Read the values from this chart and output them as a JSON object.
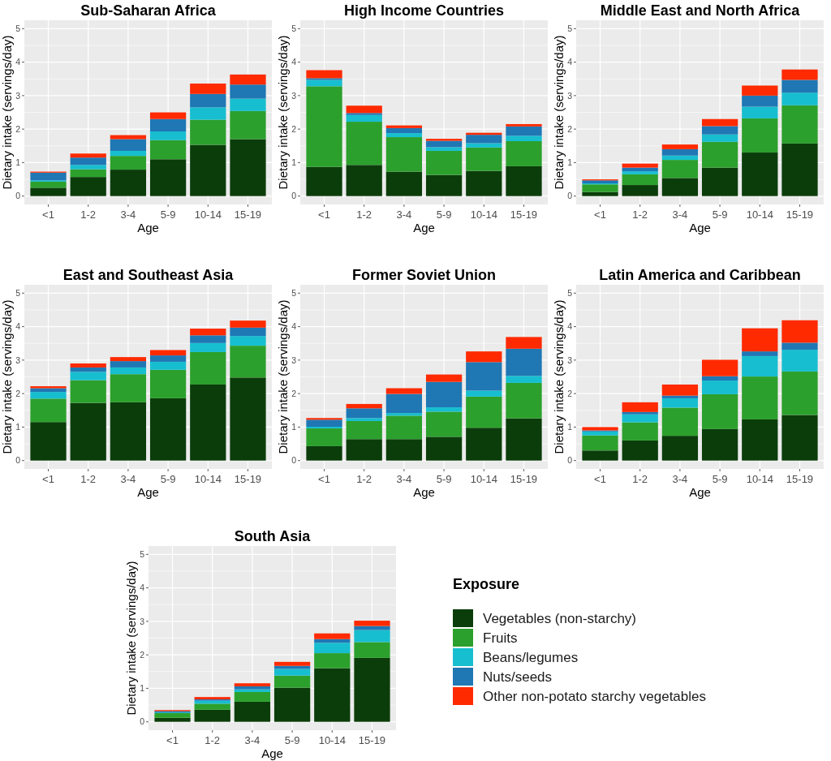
{
  "chart_data": [
    {
      "type": "bar",
      "title": "Sub-Saharan Africa",
      "xlabel": "Age",
      "ylabel": "Dietary intake (servings/day)",
      "categories": [
        "<1",
        "1-2",
        "3-4",
        "5-9",
        "10-14",
        "15-19"
      ],
      "stacked": true,
      "ylim": [
        -0.25,
        5.25
      ],
      "yticks": [
        0,
        1,
        2,
        3,
        4,
        5
      ],
      "grid": true,
      "series": [
        {
          "color": "#0b3d0b",
          "values": [
            0.25,
            0.57,
            0.79,
            1.1,
            1.53,
            1.7
          ]
        },
        {
          "color": "#2ca02c",
          "values": [
            0.18,
            0.23,
            0.41,
            0.57,
            0.75,
            0.84
          ]
        },
        {
          "color": "#17becf",
          "values": [
            0.04,
            0.13,
            0.15,
            0.26,
            0.37,
            0.37
          ]
        },
        {
          "color": "#1f77b4",
          "values": [
            0.23,
            0.22,
            0.35,
            0.37,
            0.4,
            0.42
          ]
        },
        {
          "color": "#ff2a00",
          "values": [
            0.03,
            0.12,
            0.12,
            0.2,
            0.31,
            0.3
          ]
        }
      ]
    },
    {
      "type": "bar",
      "title": "High Income Countries",
      "xlabel": "Age",
      "ylabel": "Dietary intake (servings/day)",
      "categories": [
        "<1",
        "1-2",
        "3-4",
        "5-9",
        "10-14",
        "15-19"
      ],
      "stacked": true,
      "ylim": [
        -0.25,
        5.25
      ],
      "yticks": [
        0,
        1,
        2,
        3,
        4,
        5
      ],
      "grid": true,
      "series": [
        {
          "color": "#0b3d0b",
          "values": [
            0.87,
            0.93,
            0.73,
            0.63,
            0.75,
            0.89
          ]
        },
        {
          "color": "#2ca02c",
          "values": [
            2.41,
            1.29,
            1.03,
            0.72,
            0.7,
            0.75
          ]
        },
        {
          "color": "#17becf",
          "values": [
            0.19,
            0.2,
            0.12,
            0.11,
            0.13,
            0.16
          ]
        },
        {
          "color": "#1f77b4",
          "values": [
            0.05,
            0.06,
            0.15,
            0.19,
            0.25,
            0.28
          ]
        },
        {
          "color": "#ff2a00",
          "values": [
            0.24,
            0.22,
            0.08,
            0.06,
            0.06,
            0.07
          ]
        }
      ]
    },
    {
      "type": "bar",
      "title": "Middle East and North Africa",
      "xlabel": "Age",
      "ylabel": "Dietary intake (servings/day)",
      "categories": [
        "<1",
        "1-2",
        "3-4",
        "5-9",
        "10-14",
        "15-19"
      ],
      "stacked": true,
      "ylim": [
        -0.25,
        5.25
      ],
      "yticks": [
        0,
        1,
        2,
        3,
        4,
        5
      ],
      "grid": true,
      "series": [
        {
          "color": "#0b3d0b",
          "values": [
            0.12,
            0.33,
            0.54,
            0.85,
            1.3,
            1.57
          ]
        },
        {
          "color": "#2ca02c",
          "values": [
            0.23,
            0.32,
            0.54,
            0.77,
            1.02,
            1.14
          ]
        },
        {
          "color": "#17becf",
          "values": [
            0.03,
            0.09,
            0.13,
            0.22,
            0.35,
            0.38
          ]
        },
        {
          "color": "#1f77b4",
          "values": [
            0.09,
            0.11,
            0.19,
            0.25,
            0.33,
            0.38
          ]
        },
        {
          "color": "#ff2a00",
          "values": [
            0.03,
            0.12,
            0.14,
            0.21,
            0.3,
            0.31
          ]
        }
      ]
    },
    {
      "type": "bar",
      "title": "East and Southeast Asia",
      "xlabel": "Age",
      "ylabel": "Dietary intake (servings/day)",
      "categories": [
        "<1",
        "1-2",
        "3-4",
        "5-9",
        "10-14",
        "15-19"
      ],
      "stacked": true,
      "ylim": [
        -0.25,
        5.25
      ],
      "yticks": [
        0,
        1,
        2,
        3,
        4,
        5
      ],
      "grid": true,
      "series": [
        {
          "color": "#0b3d0b",
          "values": [
            1.15,
            1.72,
            1.74,
            1.86,
            2.27,
            2.48
          ]
        },
        {
          "color": "#2ca02c",
          "values": [
            0.7,
            0.68,
            0.84,
            0.85,
            0.97,
            0.95
          ]
        },
        {
          "color": "#17becf",
          "values": [
            0.2,
            0.25,
            0.2,
            0.24,
            0.27,
            0.29
          ]
        },
        {
          "color": "#1f77b4",
          "values": [
            0.11,
            0.13,
            0.19,
            0.19,
            0.23,
            0.25
          ]
        },
        {
          "color": "#ff2a00",
          "values": [
            0.06,
            0.12,
            0.12,
            0.16,
            0.2,
            0.21
          ]
        }
      ]
    },
    {
      "type": "bar",
      "title": "Former Soviet Union",
      "xlabel": "Age",
      "ylabel": "Dietary intake (servings/day)",
      "categories": [
        "<1",
        "1-2",
        "3-4",
        "5-9",
        "10-14",
        "15-19"
      ],
      "stacked": true,
      "ylim": [
        -0.25,
        5.25
      ],
      "yticks": [
        0,
        1,
        2,
        3,
        4,
        5
      ],
      "grid": true,
      "series": [
        {
          "color": "#0b3d0b",
          "values": [
            0.43,
            0.64,
            0.64,
            0.71,
            0.98,
            1.26
          ]
        },
        {
          "color": "#2ca02c",
          "values": [
            0.53,
            0.54,
            0.7,
            0.75,
            0.93,
            1.06
          ]
        },
        {
          "color": "#17becf",
          "values": [
            0.05,
            0.09,
            0.08,
            0.13,
            0.18,
            0.21
          ]
        },
        {
          "color": "#1f77b4",
          "values": [
            0.21,
            0.29,
            0.57,
            0.76,
            0.85,
            0.81
          ]
        },
        {
          "color": "#ff2a00",
          "values": [
            0.05,
            0.13,
            0.17,
            0.22,
            0.32,
            0.35
          ]
        }
      ]
    },
    {
      "type": "bar",
      "title": "Latin America and Caribbean",
      "xlabel": "Age",
      "ylabel": "Dietary intake (servings/day)",
      "categories": [
        "<1",
        "1-2",
        "3-4",
        "5-9",
        "10-14",
        "15-19"
      ],
      "stacked": true,
      "ylim": [
        -0.25,
        5.25
      ],
      "yticks": [
        0,
        1,
        2,
        3,
        4,
        5
      ],
      "grid": true,
      "series": [
        {
          "color": "#0b3d0b",
          "values": [
            0.3,
            0.6,
            0.74,
            0.94,
            1.23,
            1.36
          ]
        },
        {
          "color": "#2ca02c",
          "values": [
            0.45,
            0.54,
            0.84,
            1.04,
            1.28,
            1.3
          ]
        },
        {
          "color": "#17becf",
          "values": [
            0.12,
            0.24,
            0.28,
            0.41,
            0.61,
            0.65
          ]
        },
        {
          "color": "#1f77b4",
          "values": [
            0.03,
            0.07,
            0.08,
            0.13,
            0.14,
            0.21
          ]
        },
        {
          "color": "#ff2a00",
          "values": [
            0.1,
            0.29,
            0.33,
            0.49,
            0.69,
            0.67
          ]
        }
      ]
    },
    {
      "type": "bar",
      "title": "South Asia",
      "xlabel": "Age",
      "ylabel": "Dietary intake (servings/day)",
      "categories": [
        "<1",
        "1-2",
        "3-4",
        "5-9",
        "10-14",
        "15-19"
      ],
      "stacked": true,
      "ylim": [
        -0.25,
        5.25
      ],
      "yticks": [
        0,
        1,
        2,
        3,
        4,
        5
      ],
      "grid": true,
      "legend": "right",
      "legend_title": "Exposure",
      "series": [
        {
          "name": "Vegetables (non-starchy)",
          "color": "#0b3d0b",
          "values": [
            0.12,
            0.36,
            0.6,
            1.02,
            1.6,
            1.91
          ]
        },
        {
          "name": "Fruits",
          "color": "#2ca02c",
          "values": [
            0.14,
            0.18,
            0.29,
            0.36,
            0.45,
            0.47
          ]
        },
        {
          "name": "Beans/legumes",
          "color": "#17becf",
          "values": [
            0.02,
            0.09,
            0.08,
            0.2,
            0.31,
            0.36
          ]
        },
        {
          "name": "Nuts/seeds",
          "color": "#1f77b4",
          "values": [
            0.04,
            0.04,
            0.09,
            0.09,
            0.11,
            0.12
          ]
        },
        {
          "name": "Other non-potato starchy vegetables",
          "color": "#ff2a00",
          "values": [
            0.03,
            0.07,
            0.09,
            0.12,
            0.17,
            0.16
          ]
        }
      ]
    }
  ]
}
